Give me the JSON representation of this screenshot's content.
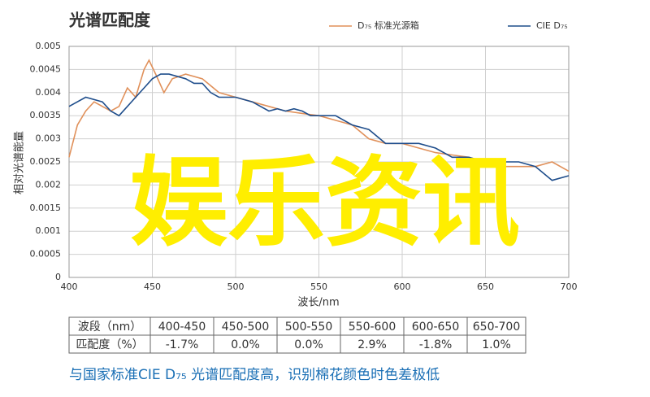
{
  "chart_data": {
    "type": "line",
    "title": "光谱匹配度",
    "xlabel": "波长/nm",
    "ylabel": "相对光谱能量",
    "xlim": [
      400,
      700
    ],
    "xticks": [
      400,
      450,
      500,
      550,
      600,
      650,
      700
    ],
    "ylim": [
      0,
      0.005
    ],
    "yticks": [
      0,
      0.0005,
      0.001,
      0.0015,
      0.002,
      0.0025,
      0.003,
      0.0035,
      0.004,
      0.0045,
      0.005
    ],
    "grid": true,
    "legend": "top-right",
    "series": [
      {
        "name": "D₇₅ 标准光源箱",
        "color": "#e0905a",
        "x": [
          400,
          405,
          410,
          415,
          420,
          425,
          430,
          435,
          440,
          445,
          448,
          452,
          457,
          462,
          470,
          480,
          490,
          500,
          510,
          520,
          530,
          540,
          550,
          560,
          570,
          580,
          590,
          600,
          610,
          620,
          630,
          640,
          650,
          660,
          670,
          680,
          690,
          700
        ],
        "values": [
          0.0026,
          0.0033,
          0.0036,
          0.0038,
          0.0037,
          0.0036,
          0.0037,
          0.0041,
          0.0039,
          0.0045,
          0.0047,
          0.0044,
          0.004,
          0.0043,
          0.0044,
          0.0043,
          0.004,
          0.0039,
          0.0038,
          0.0037,
          0.0036,
          0.00355,
          0.0035,
          0.0034,
          0.0033,
          0.003,
          0.0029,
          0.0029,
          0.0028,
          0.0027,
          0.00265,
          0.0026,
          0.0025,
          0.0024,
          0.0024,
          0.0024,
          0.0025,
          0.0023
        ]
      },
      {
        "name": "CIE D₇₅",
        "color": "#1f4e8c",
        "x": [
          400,
          410,
          420,
          425,
          430,
          435,
          440,
          445,
          450,
          455,
          460,
          470,
          475,
          480,
          485,
          490,
          500,
          510,
          520,
          525,
          530,
          535,
          540,
          545,
          560,
          570,
          580,
          590,
          600,
          610,
          620,
          630,
          640,
          650,
          660,
          670,
          680,
          690,
          700
        ],
        "values": [
          0.0037,
          0.0039,
          0.0038,
          0.0036,
          0.0035,
          0.0037,
          0.0039,
          0.0041,
          0.0043,
          0.0044,
          0.0044,
          0.0043,
          0.0042,
          0.0042,
          0.004,
          0.0039,
          0.0039,
          0.0038,
          0.0036,
          0.00365,
          0.0036,
          0.00365,
          0.0036,
          0.0035,
          0.0035,
          0.0033,
          0.0032,
          0.0029,
          0.0029,
          0.0029,
          0.0028,
          0.0026,
          0.0026,
          0.0025,
          0.0025,
          0.0025,
          0.0024,
          0.0021,
          0.0022
        ]
      }
    ]
  },
  "overlay": "娱乐资讯",
  "table": {
    "headers": [
      "波段（nm）",
      "400-450",
      "450-500",
      "500-550",
      "550-600",
      "600-650",
      "650-700"
    ],
    "rows": [
      [
        "匹配度（%）",
        "-1.7%",
        "0.0%",
        "0.0%",
        "2.9%",
        "-1.8%",
        "1.0%"
      ]
    ]
  },
  "caption": "与国家标准CIE D₇₅ 光谱匹配度高，识别棉花颜色时色差极低"
}
